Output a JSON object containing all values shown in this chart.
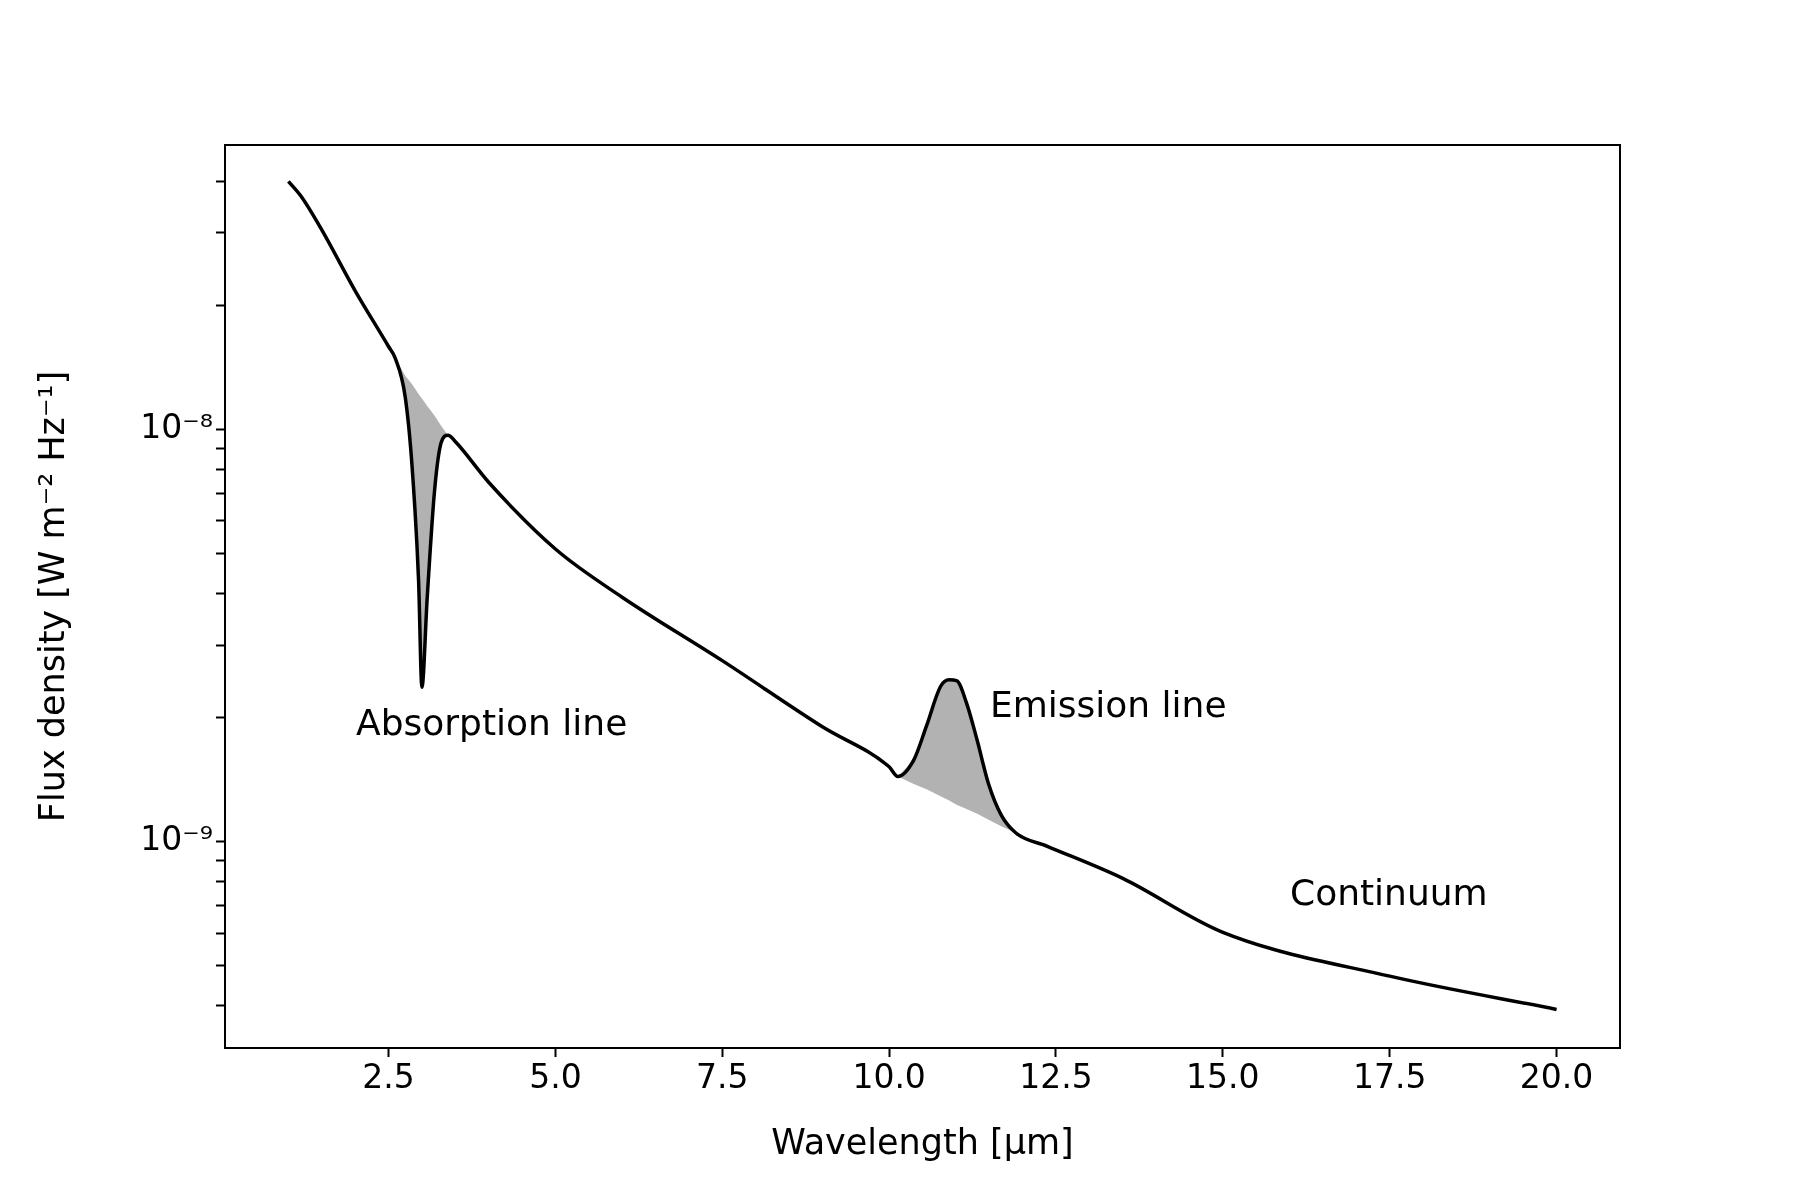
{
  "chart_data": {
    "type": "line",
    "xlabel": "Wavelength [μm]",
    "ylabel": "Flux density [W m⁻² Hz⁻¹]",
    "x": [
      1,
      1.2,
      1.5,
      2,
      2.5,
      2.6,
      2.75,
      2.85,
      2.95,
      3.0,
      3.08,
      3.19,
      3.29,
      3.39,
      3.51,
      4,
      5,
      6,
      7.5,
      9,
      10,
      10.13,
      10.37,
      10.56,
      10.77,
      10.9,
      11.01,
      11.16,
      11.32,
      11.49,
      11.68,
      11.9,
      12.37,
      13.5,
      15,
      17.5,
      20
    ],
    "series": [
      {
        "color": "#000000",
        "values": [
          4e-08,
          3.66e-08,
          3.05e-08,
          2.17e-08,
          1.59e-08,
          1.49e-08,
          1.2e-08,
          8.25e-09,
          4.31e-09,
          2.37e-09,
          3.92e-09,
          7.12e-09,
          9.31e-09,
          9.69e-09,
          9.31e-09,
          7.45e-09,
          5.13e-09,
          3.92e-09,
          2.75e-09,
          1.9e-09,
          1.52e-09,
          1.44e-09,
          1.58e-09,
          1.91e-09,
          2.38e-09,
          2.47e-09,
          2.46e-09,
          2.17e-09,
          1.76e-09,
          1.38e-09,
          1.16e-09,
          1.05e-09,
          9.75e-10,
          8.15e-10,
          6.03e-10,
          4.72e-10,
          3.92e-10
        ],
        "lower": [
          null,
          null,
          null,
          null,
          null,
          1.49e-08,
          1.2e-08,
          8.25e-09,
          4.31e-09,
          2.37e-09,
          3.92e-09,
          7.12e-09,
          9.31e-09,
          9.69e-09,
          null,
          null,
          null,
          null,
          null,
          null,
          null,
          1.44e-09,
          1.38e-09,
          1.34e-09,
          1.29e-09,
          1.26e-09,
          1.23e-09,
          1.2e-09,
          1.17e-09,
          1.13e-09,
          1.09e-09,
          1.05e-09,
          null,
          null,
          null,
          null,
          null
        ],
        "upper": [
          null,
          null,
          null,
          null,
          null,
          1.49e-08,
          1.35e-08,
          1.29e-08,
          1.22e-08,
          1.19e-08,
          1.14e-08,
          1.08e-08,
          1.02e-08,
          9.69e-09,
          null,
          null,
          null,
          null,
          null,
          null,
          null,
          1.44e-09,
          1.58e-09,
          1.91e-09,
          2.38e-09,
          2.47e-09,
          2.46e-09,
          2.17e-09,
          1.76e-09,
          1.38e-09,
          1.16e-09,
          1.05e-09,
          null,
          null,
          null,
          null,
          null
        ]
      }
    ],
    "xlim": [
      0.05,
      20.95
    ],
    "xticks": [
      2.5,
      {
        "value": 5,
        "label": "5.0"
      },
      7.5,
      {
        "value": 10,
        "label": "10.0"
      },
      12.5,
      {
        "value": 15,
        "label": "15.0"
      },
      17.5,
      {
        "value": 20,
        "label": "20.0"
      }
    ],
    "ylim": [
      3.16e-10,
      4.9e-08
    ],
    "log": "y",
    "yticks": [
      {
        "value": 4e-10,
        "label": null
      },
      {
        "value": 5e-10,
        "label": null
      },
      {
        "value": 6e-10,
        "label": null
      },
      {
        "value": 7e-10,
        "label": null
      },
      {
        "value": 8e-10,
        "label": null
      },
      {
        "value": 9e-10,
        "label": null
      },
      {
        "value": 1e-09,
        "label": "10⁻⁹"
      },
      {
        "value": 2e-09,
        "label": null
      },
      {
        "value": 3e-09,
        "label": null
      },
      {
        "value": 4e-09,
        "label": null
      },
      {
        "value": 5e-09,
        "label": null
      },
      {
        "value": 6e-09,
        "label": null
      },
      {
        "value": 7e-09,
        "label": null
      },
      {
        "value": 8e-09,
        "label": null
      },
      {
        "value": 9e-09,
        "label": null
      },
      {
        "value": 1e-08,
        "label": "10⁻⁸"
      },
      {
        "value": 2e-08,
        "label": null
      },
      {
        "value": 3e-08,
        "label": null
      },
      {
        "value": 4e-08,
        "label": null
      }
    ],
    "annotations": [
      "Absorption line",
      "Emission line",
      "Continuum"
    ],
    "grid": false,
    "legend": false,
    "marker": "none",
    "line_style": "solid"
  }
}
